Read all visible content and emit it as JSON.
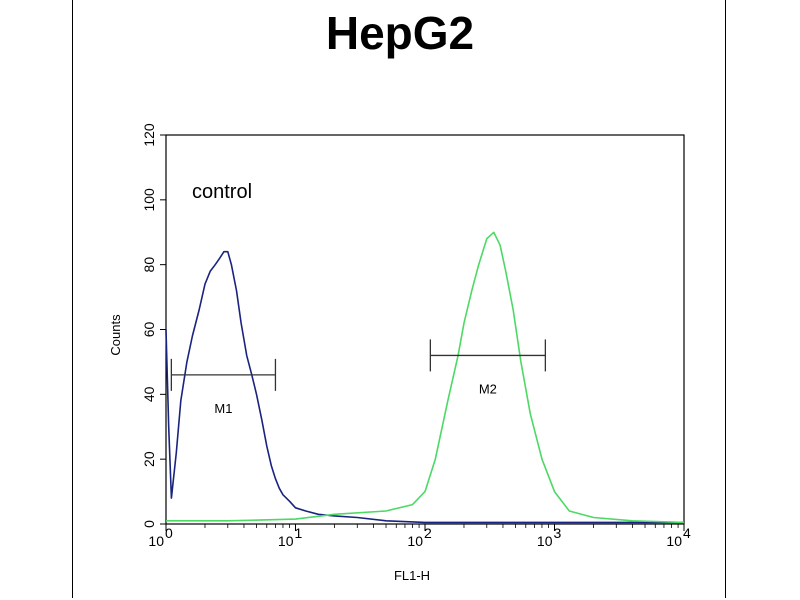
{
  "chart_data": {
    "type": "line",
    "title": "HepG2",
    "xlabel": "FL1-H",
    "ylabel": "Counts",
    "x_scale": "log",
    "xlim": [
      1,
      10000
    ],
    "ylim": [
      0,
      120
    ],
    "x_ticks": [
      {
        "value": 1,
        "base": "10",
        "exp": "0"
      },
      {
        "value": 10,
        "base": "10",
        "exp": "1"
      },
      {
        "value": 100,
        "base": "10",
        "exp": "2"
      },
      {
        "value": 1000,
        "base": "10",
        "exp": "3"
      },
      {
        "value": 10000,
        "base": "10",
        "exp": "4"
      }
    ],
    "y_ticks": [
      "0",
      "20",
      "40",
      "60",
      "80",
      "100",
      "120"
    ],
    "grid": false,
    "annotations": [
      {
        "text": "control"
      }
    ],
    "series": [
      {
        "color": "#1a237e",
        "x": [
          1.0,
          1.05,
          1.1,
          1.2,
          1.3,
          1.45,
          1.6,
          1.8,
          2.0,
          2.2,
          2.4,
          2.6,
          2.8,
          3.0,
          3.2,
          3.5,
          3.8,
          4.2,
          4.6,
          5.0,
          5.5,
          6.0,
          6.5,
          7.0,
          7.5,
          8.0,
          9.0,
          10,
          12,
          15,
          20,
          30,
          50,
          100,
          300,
          1000,
          3000,
          10000
        ],
        "y": [
          60,
          30,
          8,
          22,
          38,
          50,
          58,
          66,
          74,
          78,
          80,
          82,
          84,
          84,
          80,
          72,
          62,
          52,
          46,
          40,
          32,
          24,
          18,
          14,
          11,
          9,
          7,
          5,
          4,
          3,
          2.5,
          2,
          1,
          0.5,
          0.5,
          0.5,
          0.5,
          0.5
        ]
      },
      {
        "color": "#4cd964",
        "x": [
          1,
          3,
          10,
          20,
          50,
          80,
          100,
          120,
          150,
          180,
          200,
          230,
          260,
          300,
          340,
          380,
          420,
          480,
          550,
          650,
          800,
          1000,
          1300,
          2000,
          4000,
          10000
        ],
        "y": [
          1,
          1,
          1.5,
          3,
          4,
          6,
          10,
          20,
          38,
          52,
          62,
          72,
          80,
          88,
          90,
          86,
          78,
          66,
          50,
          34,
          20,
          10,
          4,
          2,
          1,
          0.5
        ]
      }
    ],
    "markers": [
      {
        "label": "M1",
        "x_start": 1.1,
        "x_end": 7.0,
        "y": 46
      },
      {
        "label": "M2",
        "x_start": 110,
        "x_end": 850,
        "y": 52
      }
    ]
  }
}
